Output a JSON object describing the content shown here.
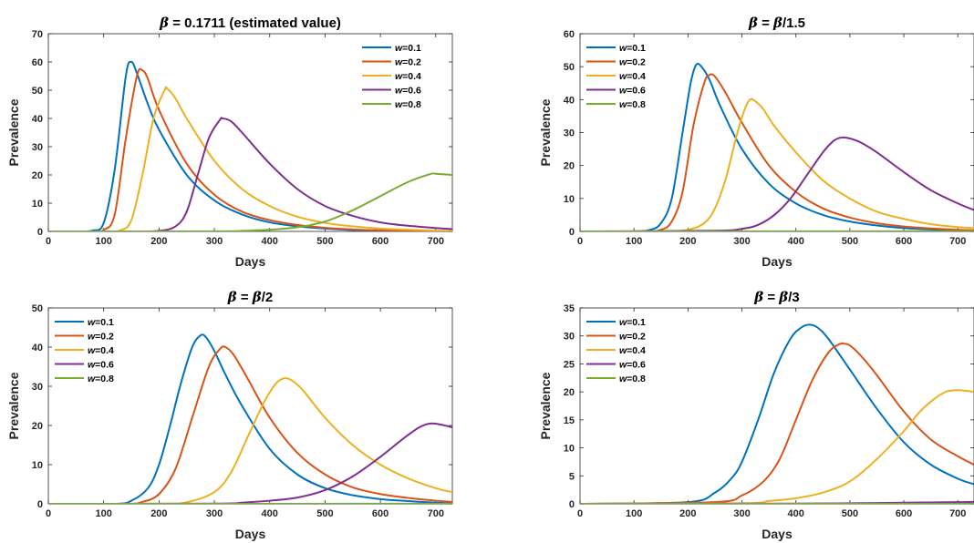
{
  "chart_data": [
    {
      "type": "line",
      "title": "β = 0.1711 (estimated value)",
      "xlabel": "Days",
      "ylabel": "Prevalence",
      "xlim": [
        0,
        730
      ],
      "ylim": [
        0,
        70
      ],
      "xticks": [
        0,
        100,
        200,
        300,
        400,
        500,
        600,
        700
      ],
      "yticks": [
        0,
        10,
        20,
        30,
        40,
        50,
        60,
        70
      ],
      "legend_position": "top-right",
      "grid": false,
      "series": [
        {
          "name": "w=0.1",
          "x": [
            0,
            50,
            80,
            100,
            120,
            140,
            150,
            160,
            180,
            200,
            250,
            300,
            350,
            400,
            450,
            500,
            550,
            600,
            650,
            700,
            730
          ],
          "values": [
            0,
            0,
            0.3,
            3,
            22,
            55,
            60,
            56,
            45,
            36,
            20,
            11,
            6,
            3.2,
            1.8,
            1,
            0.5,
            0.3,
            0.2,
            0.1,
            0
          ]
        },
        {
          "name": "w=0.2",
          "x": [
            0,
            80,
            100,
            120,
            140,
            160,
            170,
            180,
            200,
            250,
            300,
            350,
            400,
            450,
            500,
            550,
            600,
            650,
            700,
            730
          ],
          "values": [
            0,
            0,
            0.5,
            6,
            33,
            55,
            57,
            54,
            43,
            24,
            13,
            7,
            4,
            2.3,
            1.3,
            0.7,
            0.4,
            0.2,
            0.1,
            0
          ]
        },
        {
          "name": "w=0.4",
          "x": [
            0,
            100,
            130,
            150,
            170,
            190,
            210,
            215,
            230,
            250,
            300,
            350,
            400,
            450,
            500,
            550,
            600,
            650,
            700,
            730
          ],
          "values": [
            0,
            0,
            0.4,
            4,
            20,
            40,
            50,
            50.5,
            47,
            40,
            25,
            15,
            9,
            5.2,
            3,
            1.8,
            1,
            0.6,
            0.3,
            0.2
          ]
        },
        {
          "name": "w=0.6",
          "x": [
            0,
            150,
            200,
            230,
            250,
            270,
            290,
            310,
            315,
            330,
            350,
            400,
            450,
            500,
            550,
            600,
            650,
            700,
            730
          ],
          "values": [
            0,
            0,
            0.2,
            1.8,
            7,
            20,
            33,
            39.5,
            40,
            39,
            35,
            24,
            15,
            9,
            5.5,
            3.2,
            2,
            1.2,
            0.8
          ]
        },
        {
          "name": "w=0.8",
          "x": [
            0,
            300,
            350,
            400,
            450,
            500,
            550,
            600,
            650,
            690,
            700,
            730
          ],
          "values": [
            0,
            0.05,
            0.2,
            0.6,
            1.5,
            3.5,
            7.5,
            12.5,
            17.5,
            20.3,
            20.4,
            20
          ]
        }
      ]
    },
    {
      "type": "line",
      "title": "β = β/1.5",
      "xlabel": "Days",
      "ylabel": "Prevalence",
      "xlim": [
        0,
        730
      ],
      "ylim": [
        0,
        60
      ],
      "xticks": [
        0,
        100,
        200,
        300,
        400,
        500,
        600,
        700
      ],
      "yticks": [
        0,
        10,
        20,
        30,
        40,
        50,
        60
      ],
      "legend_position": "top-left",
      "grid": false,
      "series": [
        {
          "name": "w=0.1",
          "x": [
            0,
            100,
            130,
            150,
            170,
            190,
            205,
            215,
            225,
            240,
            260,
            300,
            350,
            400,
            450,
            500,
            550,
            600,
            650,
            700,
            730
          ],
          "values": [
            0,
            0,
            0.5,
            2.5,
            10,
            30,
            45,
            50.5,
            50,
            46,
            38,
            25,
            14.5,
            8.5,
            5,
            3,
            1.8,
            1,
            0.6,
            0.3,
            0.2
          ]
        },
        {
          "name": "w=0.2",
          "x": [
            0,
            120,
            150,
            170,
            190,
            210,
            230,
            240,
            250,
            270,
            300,
            350,
            400,
            450,
            500,
            550,
            600,
            650,
            700,
            730
          ],
          "values": [
            0,
            0,
            0.5,
            3,
            12,
            32,
            45,
            47.5,
            47,
            42,
            33,
            20,
            12,
            7,
            4.2,
            2.5,
            1.5,
            0.9,
            0.5,
            0.3
          ]
        },
        {
          "name": "w=0.4",
          "x": [
            0,
            150,
            200,
            230,
            250,
            270,
            290,
            305,
            315,
            325,
            340,
            360,
            400,
            450,
            500,
            550,
            600,
            650,
            700,
            730
          ],
          "values": [
            0,
            0,
            0.5,
            2.5,
            7,
            16,
            29,
            37,
            40,
            39.5,
            37,
            32,
            24,
            15.5,
            10,
            6,
            3.8,
            2.2,
            1.3,
            1
          ]
        },
        {
          "name": "w=0.6",
          "x": [
            0,
            250,
            300,
            330,
            360,
            390,
            420,
            450,
            470,
            485,
            500,
            520,
            550,
            600,
            650,
            700,
            730
          ],
          "values": [
            0,
            0.2,
            0.8,
            2,
            5,
            10,
            17,
            24,
            27.5,
            28.5,
            28.2,
            27,
            24,
            18,
            12.5,
            8.5,
            6.5
          ]
        },
        {
          "name": "w=0.8",
          "x": [
            0,
            730
          ],
          "values": [
            0,
            0.05
          ]
        }
      ]
    },
    {
      "type": "line",
      "title": "β = β/2",
      "xlabel": "Days",
      "ylabel": "Prevalence",
      "xlim": [
        0,
        730
      ],
      "ylim": [
        0,
        50
      ],
      "xticks": [
        0,
        100,
        200,
        300,
        400,
        500,
        600,
        700
      ],
      "yticks": [
        0,
        10,
        20,
        30,
        40,
        50
      ],
      "legend_position": "top-left",
      "grid": false,
      "series": [
        {
          "name": "w=0.1",
          "x": [
            0,
            120,
            150,
            180,
            200,
            220,
            240,
            260,
            275,
            285,
            300,
            320,
            350,
            400,
            450,
            500,
            550,
            600,
            650,
            700,
            730
          ],
          "values": [
            0,
            0,
            0.8,
            4,
            10,
            20,
            31,
            40,
            43,
            42.5,
            39,
            33,
            25,
            14,
            7.5,
            4,
            2.2,
            1.2,
            0.7,
            0.3,
            0.2
          ]
        },
        {
          "name": "w=0.2",
          "x": [
            0,
            140,
            170,
            200,
            230,
            260,
            290,
            310,
            320,
            335,
            360,
            400,
            450,
            500,
            550,
            600,
            650,
            700,
            730
          ],
          "values": [
            0,
            0,
            0.5,
            2.5,
            9,
            22,
            35,
            39.5,
            40,
            38,
            32,
            22,
            13,
            7.5,
            4.2,
            2.5,
            1.5,
            0.8,
            0.5
          ]
        },
        {
          "name": "w=0.4",
          "x": [
            0,
            200,
            250,
            300,
            330,
            360,
            390,
            410,
            425,
            440,
            460,
            500,
            550,
            600,
            650,
            700,
            730
          ],
          "values": [
            0,
            0.05,
            0.4,
            3,
            8,
            17,
            26,
            30.5,
            32,
            31.5,
            29,
            22,
            15,
            10,
            6.5,
            4,
            3
          ]
        },
        {
          "name": "w=0.6",
          "x": [
            0,
            300,
            350,
            400,
            450,
            500,
            550,
            600,
            640,
            670,
            690,
            710,
            730
          ],
          "values": [
            0,
            0.05,
            0.3,
            0.8,
            1.6,
            3.5,
            7,
            12,
            16.5,
            19.5,
            20.5,
            20.2,
            19.5
          ]
        },
        {
          "name": "w=0.8",
          "x": [
            0,
            730
          ],
          "values": [
            0,
            0.02
          ]
        }
      ]
    },
    {
      "type": "line",
      "title": "β = β/3",
      "xlabel": "Days",
      "ylabel": "Prevalence",
      "xlim": [
        0,
        730
      ],
      "ylim": [
        0,
        35
      ],
      "xticks": [
        0,
        100,
        200,
        300,
        400,
        500,
        600,
        700
      ],
      "yticks": [
        0,
        5,
        10,
        15,
        20,
        25,
        30,
        35
      ],
      "legend_position": "top-left",
      "grid": false,
      "series": [
        {
          "name": "w=0.1",
          "x": [
            0,
            200,
            250,
            280,
            300,
            330,
            360,
            390,
            410,
            425,
            440,
            460,
            500,
            550,
            600,
            650,
            700,
            730
          ],
          "values": [
            0,
            0.3,
            2,
            4.5,
            7.5,
            15,
            23.5,
            29.5,
            31.5,
            32,
            31.5,
            29.5,
            24,
            17,
            11,
            7,
            4.5,
            3.5
          ]
        },
        {
          "name": "w=0.2",
          "x": [
            0,
            250,
            300,
            340,
            370,
            400,
            430,
            460,
            480,
            490,
            500,
            520,
            550,
            600,
            650,
            700,
            730
          ],
          "values": [
            0,
            0.3,
            1.5,
            4,
            8,
            15,
            22,
            27,
            28.5,
            28.6,
            28.3,
            26.5,
            23,
            16.5,
            11.5,
            8.5,
            7
          ]
        },
        {
          "name": "w=0.4",
          "x": [
            0,
            300,
            350,
            400,
            450,
            500,
            550,
            600,
            630,
            660,
            680,
            700,
            715,
            730
          ],
          "values": [
            0,
            0.1,
            0.5,
            1,
            2,
            4,
            8,
            13,
            16.5,
            19,
            20.1,
            20.3,
            20.2,
            20
          ]
        },
        {
          "name": "w=0.6",
          "x": [
            0,
            400,
            500,
            600,
            700,
            730
          ],
          "values": [
            0,
            0.05,
            0.1,
            0.2,
            0.3,
            0.35
          ]
        },
        {
          "name": "w=0.8",
          "x": [
            0,
            730
          ],
          "values": [
            0,
            0.02
          ]
        }
      ]
    }
  ],
  "colors": {
    "w=0.1": "#0072BD",
    "w=0.2": "#D95319",
    "w=0.4": "#EDB120",
    "w=0.6": "#7E2F8E",
    "w=0.8": "#77AC30"
  }
}
